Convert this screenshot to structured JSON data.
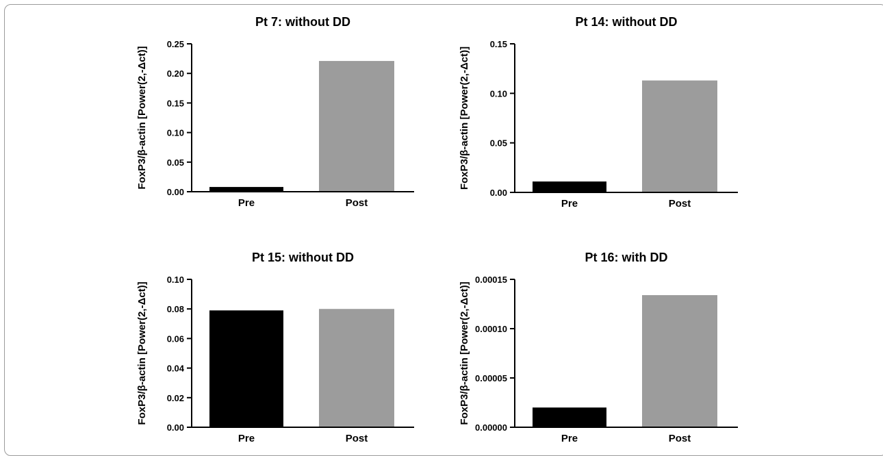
{
  "colors": {
    "pre": "#000000",
    "post": "#9c9c9c",
    "axis": "#000000"
  },
  "chart_data": [
    {
      "type": "bar",
      "title": "Pt 7: without DD",
      "ylabel": "FoxP3/β-actin [Power(2,-Δct)]",
      "xlabel": "",
      "categories": [
        "Pre",
        "Post"
      ],
      "values": [
        0.008,
        0.221
      ],
      "ylim": [
        0,
        0.25
      ],
      "yticks": [
        "0.00",
        "0.05",
        "0.10",
        "0.15",
        "0.20",
        "0.25"
      ],
      "grid": false
    },
    {
      "type": "bar",
      "title": "Pt 14: without DD",
      "ylabel": "FoxP3/β-actin [Power(2,-Δct)]",
      "xlabel": "",
      "categories": [
        "Pre",
        "Post"
      ],
      "values": [
        0.011,
        0.113
      ],
      "ylim": [
        0,
        0.15
      ],
      "yticks": [
        "0.00",
        "0.05",
        "0.10",
        "0.15"
      ],
      "grid": false
    },
    {
      "type": "bar",
      "title": "Pt 15: without DD",
      "ylabel": "FoxP3/β-actin [Power(2,-Δct)]",
      "xlabel": "",
      "categories": [
        "Pre",
        "Post"
      ],
      "values": [
        0.079,
        0.08
      ],
      "ylim": [
        0,
        0.1
      ],
      "yticks": [
        "0.00",
        "0.02",
        "0.04",
        "0.06",
        "0.08",
        "0.10"
      ],
      "grid": false
    },
    {
      "type": "bar",
      "title": "Pt 16: with DD",
      "ylabel": "FoxP3/β-actin [Power(2,-Δct)]",
      "xlabel": "",
      "categories": [
        "Pre",
        "Post"
      ],
      "values": [
        2e-05,
        0.000134
      ],
      "ylim": [
        0,
        0.00015
      ],
      "yticks": [
        "0.00000",
        "0.00005",
        "0.00010",
        "0.00015"
      ],
      "grid": false
    }
  ]
}
